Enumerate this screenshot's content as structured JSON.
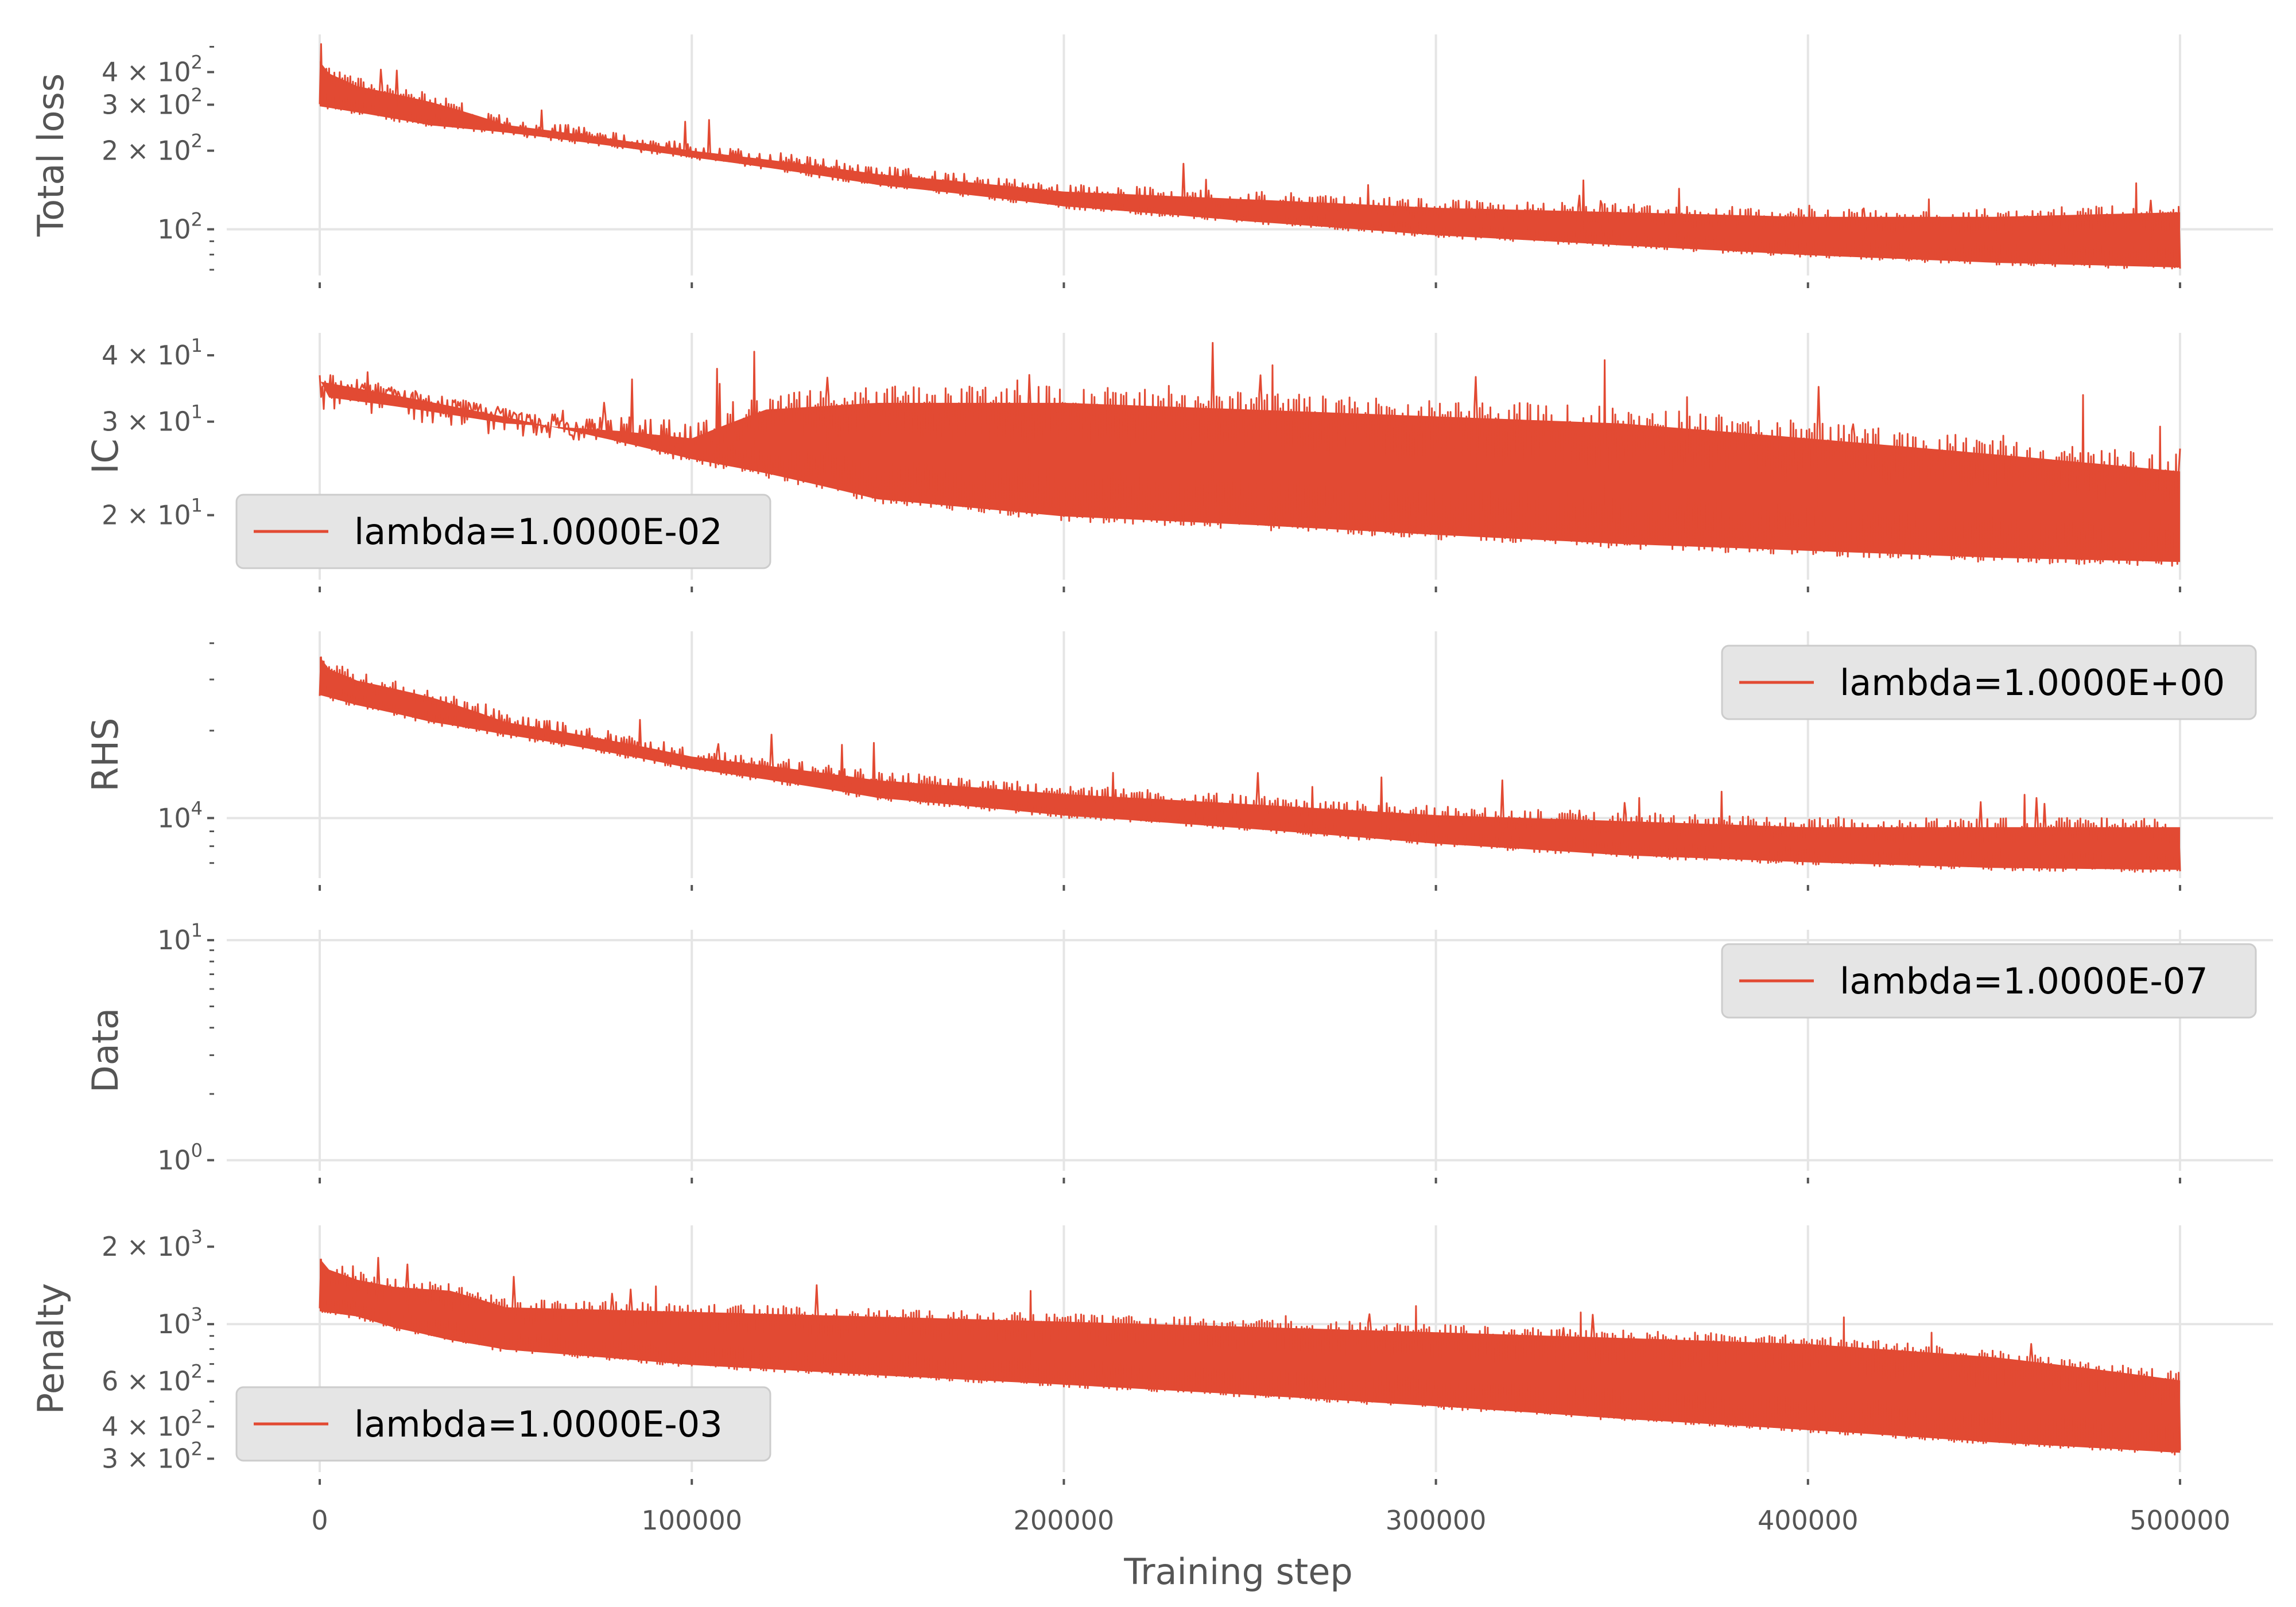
{
  "chart_data": {
    "type": "line",
    "color": "#E24A33",
    "background": "#ffffff",
    "grid": true,
    "shared_x": true,
    "xlabel": "Training step",
    "xlim": [
      -25000,
      525000
    ],
    "xticks": [
      0,
      100000,
      200000,
      300000,
      400000,
      500000
    ],
    "xtick_labels": [
      "0",
      "100000",
      "200000",
      "300000",
      "400000",
      "500000"
    ],
    "panels": [
      {
        "ylabel": "Total loss",
        "scale": "log",
        "ylim": [
          70,
          530
        ],
        "yticks": [
          {
            "value": 100,
            "base": "10",
            "exp": "2"
          },
          {
            "value": 200,
            "base": "2 × 10",
            "exp": "2"
          },
          {
            "value": 300,
            "base": "3 × 10",
            "exp": "2"
          },
          {
            "value": 400,
            "base": "4 × 10",
            "exp": "2"
          }
        ],
        "legend": null,
        "envelope": {
          "x": [
            0,
            10000,
            30000,
            50000,
            100000,
            150000,
            200000,
            250000,
            300000,
            350000,
            400000,
            450000,
            500000
          ],
          "lower": [
            290,
            275,
            245,
            230,
            185,
            145,
            120,
            105,
            93,
            85,
            78,
            73,
            70
          ],
          "upper": [
            440,
            380,
            330,
            270,
            215,
            175,
            150,
            140,
            130,
            125,
            120,
            120,
            125
          ]
        }
      },
      {
        "ylabel": "IC",
        "scale": "log",
        "ylim": [
          15.5,
          43
        ],
        "yticks": [
          {
            "value": 20,
            "base": "2 × 10",
            "exp": "1"
          },
          {
            "value": 30,
            "base": "3 × 10",
            "exp": "1"
          },
          {
            "value": 40,
            "base": "4 × 10",
            "exp": "1"
          }
        ],
        "legend": {
          "text": "lambda=1.0000E-02",
          "position": "lower left"
        },
        "envelope": {
          "x": [
            0,
            20000,
            50000,
            80000,
            100000,
            120000,
            150000,
            200000,
            250000,
            300000,
            350000,
            400000,
            450000,
            500000
          ],
          "lower": [
            35,
            33,
            30,
            27,
            25,
            23.5,
            21,
            19.5,
            18.8,
            18,
            17.3,
            16.8,
            16.3,
            16
          ],
          "upper": [
            36,
            34.5,
            32,
            31,
            30,
            34,
            35,
            35,
            34,
            33,
            32,
            30,
            28,
            26
          ]
        }
      },
      {
        "ylabel": "RHS",
        "scale": "log",
        "ylim": [
          6500,
          42000
        ],
        "yticks": [
          {
            "value": 10000,
            "base": "10",
            "exp": "4"
          }
        ],
        "legend": {
          "text": "lambda=1.0000E+00",
          "position": "upper right"
        },
        "envelope": {
          "x": [
            0,
            10000,
            30000,
            50000,
            100000,
            150000,
            200000,
            250000,
            300000,
            350000,
            400000,
            450000,
            500000
          ],
          "lower": [
            26000,
            24000,
            21000,
            19000,
            14500,
            11500,
            10000,
            9000,
            8000,
            7300,
            6900,
            6600,
            6500
          ],
          "upper": [
            36000,
            32000,
            28000,
            23000,
            17500,
            14500,
            13000,
            12000,
            11000,
            10500,
            10000,
            10000,
            10000
          ]
        }
      },
      {
        "ylabel": "Data",
        "scale": "log",
        "ylim": [
          0.95,
          10.5
        ],
        "yticks": [
          {
            "value": 1,
            "base": "10",
            "exp": "0"
          },
          {
            "value": 10,
            "base": "10",
            "exp": "1"
          }
        ],
        "legend": {
          "text": "lambda=1.0000E-07",
          "position": "upper right"
        },
        "envelope": null
      },
      {
        "ylabel": "Penalty",
        "scale": "log",
        "ylim": [
          280,
          2300
        ],
        "yticks": [
          {
            "value": 300,
            "base": "3 × 10",
            "exp": "2"
          },
          {
            "value": 400,
            "base": "4 × 10",
            "exp": "2"
          },
          {
            "value": 600,
            "base": "6 × 10",
            "exp": "2"
          },
          {
            "value": 1000,
            "base": "10",
            "exp": "3"
          },
          {
            "value": 2000,
            "base": "2 × 10",
            "exp": "3"
          }
        ],
        "legend": {
          "text": "lambda=1.0000E-03",
          "position": "lower left"
        },
        "envelope": {
          "x": [
            0,
            10000,
            20000,
            35000,
            50000,
            100000,
            150000,
            200000,
            250000,
            300000,
            350000,
            400000,
            450000,
            500000
          ],
          "lower": [
            1100,
            1050,
            950,
            850,
            780,
            680,
            620,
            570,
            520,
            470,
            420,
            380,
            340,
            310
          ],
          "upper": [
            1800,
            1600,
            1500,
            1450,
            1250,
            1200,
            1150,
            1100,
            1050,
            1000,
            950,
            900,
            800,
            650
          ]
        }
      }
    ]
  }
}
